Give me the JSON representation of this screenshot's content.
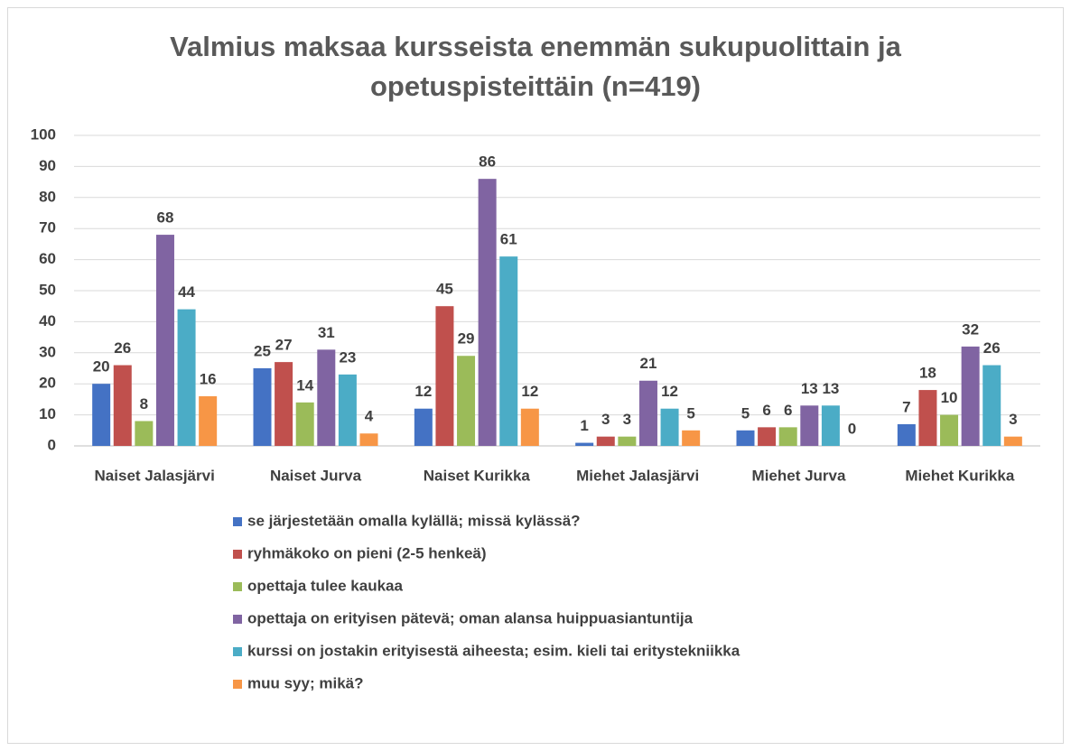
{
  "chart_data": {
    "type": "bar",
    "title": "Valmius  maksaa kursseista enemmän sukupuolittain ja opetuspisteittäin (n=419)",
    "categories": [
      "Naiset Jalasjärvi",
      "Naiset Jurva",
      "Naiset Kurikka",
      "Miehet Jalasjärvi",
      "Miehet Jurva",
      "Miehet Kurikka"
    ],
    "series": [
      {
        "name": "se järjestetään omalla kylällä; missä kylässä?",
        "color": "#4472c4",
        "values": [
          20,
          25,
          12,
          1,
          5,
          7
        ]
      },
      {
        "name": "ryhmäkoko on pieni (2-5 henkeä)",
        "color": "#c0504d",
        "values": [
          26,
          27,
          45,
          3,
          6,
          18
        ]
      },
      {
        "name": "opettaja tulee kaukaa",
        "color": "#9bbb59",
        "values": [
          8,
          14,
          29,
          3,
          6,
          10
        ]
      },
      {
        "name": "opettaja on erityisen pätevä; oman alansa huippuasiantuntija",
        "color": "#8064a2",
        "values": [
          68,
          31,
          86,
          21,
          13,
          32
        ]
      },
      {
        "name": "kurssi on jostakin erityisestä aiheesta; esim. kieli tai eritystekniikka",
        "color": "#4bacc6",
        "values": [
          44,
          23,
          61,
          12,
          13,
          26
        ]
      },
      {
        "name": "muu syy; mikä?",
        "color": "#f79646",
        "values": [
          16,
          4,
          12,
          5,
          0,
          3
        ]
      }
    ],
    "ylim": [
      0,
      100
    ],
    "yticks": [
      0,
      10,
      20,
      30,
      40,
      50,
      60,
      70,
      80,
      90,
      100
    ],
    "grid": true,
    "legend": "bottom"
  }
}
